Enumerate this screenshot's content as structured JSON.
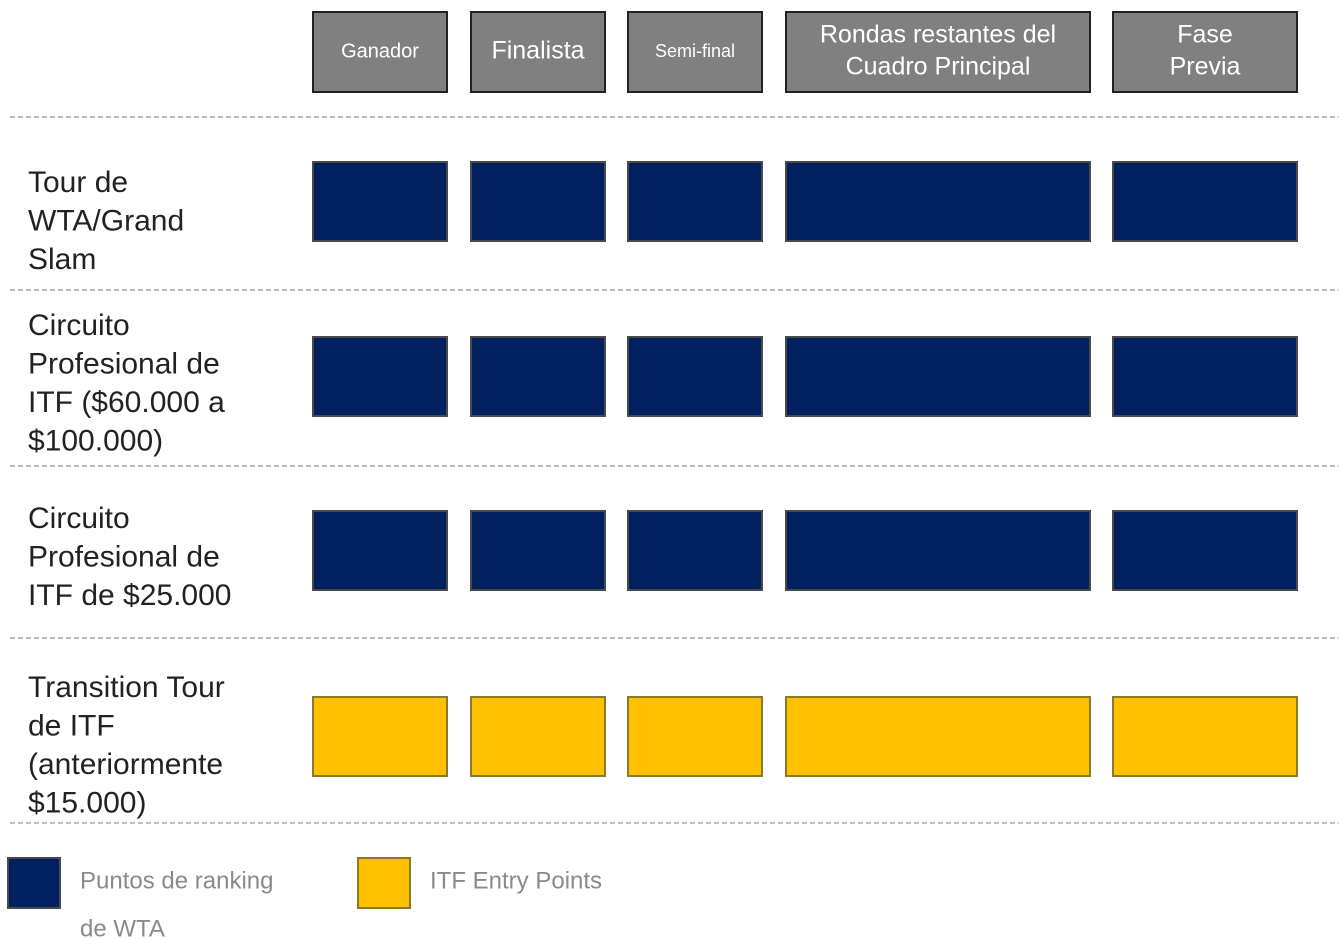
{
  "columns": [
    {
      "lines": [
        "Ganador"
      ]
    },
    {
      "lines": [
        "Finalista"
      ]
    },
    {
      "lines": [
        "Semi-final"
      ]
    },
    {
      "lines": [
        "Rondas restantes del",
        "Cuadro Principal"
      ]
    },
    {
      "lines": [
        "Fase",
        "Previa"
      ]
    }
  ],
  "rows": [
    {
      "lines": [
        "Tour de",
        "WTA/Grand",
        "Slam"
      ],
      "legend": 0
    },
    {
      "lines": [
        "Circuito",
        "Profesional de",
        "ITF ($60.000 a",
        "$100.000)"
      ],
      "legend": 0
    },
    {
      "lines": [
        "Circuito",
        "Profesional de",
        "ITF de $25.000"
      ],
      "legend": 0
    },
    {
      "lines": [
        "Transition Tour",
        "de ITF",
        "(anteriormente",
        "$15.000)"
      ],
      "legend": 1
    }
  ],
  "legend": [
    {
      "lines": [
        "Puntos de ranking",
        "de WTA"
      ],
      "color": "#002060",
      "border": "#4a4a4a"
    },
    {
      "lines": [
        "ITF Entry Points"
      ],
      "color": "#FFC000",
      "border": "#8c7a2a"
    }
  ]
}
